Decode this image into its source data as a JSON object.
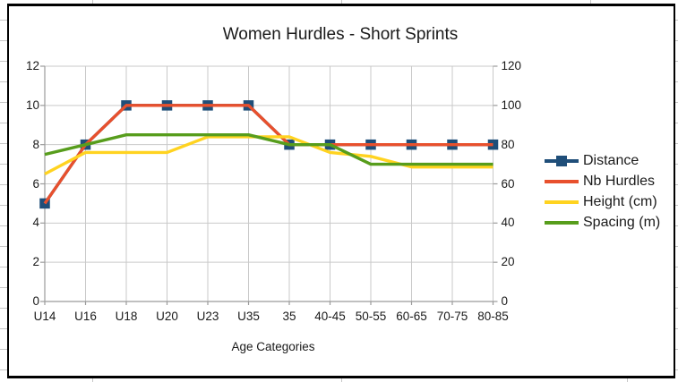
{
  "chart_data": {
    "type": "line",
    "title": "Women Hurdles - Short Sprints",
    "xlabel": "Age Categories",
    "categories": [
      "U14",
      "U16",
      "U18",
      "U20",
      "U23",
      "U35",
      "35",
      "40-45",
      "50-55",
      "60-65",
      "70-75",
      "80-85"
    ],
    "axes": {
      "left": {
        "ticks": [
          0,
          2,
          4,
          6,
          8,
          10,
          12
        ],
        "range": [
          0,
          12
        ]
      },
      "right": {
        "ticks": [
          0,
          20,
          40,
          60,
          80,
          100,
          120
        ],
        "range": [
          0,
          120
        ]
      }
    },
    "grid": true,
    "legend_position": "right",
    "series": [
      {
        "name": "Distance",
        "axis": "right",
        "color": "#1f4e79",
        "marker": "square",
        "values": [
          50,
          80,
          100,
          100,
          100,
          100,
          80,
          80,
          80,
          80,
          80,
          80
        ]
      },
      {
        "name": "Nb Hurdles",
        "axis": "left",
        "color": "#e8502d",
        "marker": "none",
        "values": [
          5,
          8,
          10,
          10,
          10,
          10,
          8,
          8,
          8,
          8,
          8,
          8
        ]
      },
      {
        "name": "Height (cm)",
        "axis": "right",
        "color": "#ffd320",
        "marker": "none",
        "values": [
          65,
          76,
          76,
          76,
          84,
          84,
          84,
          76,
          74,
          68.6,
          68.6,
          68.6
        ]
      },
      {
        "name": "Spacing (m)",
        "axis": "left",
        "color": "#579d1c",
        "marker": "none",
        "values": [
          7.5,
          8,
          8.5,
          8.5,
          8.5,
          8.5,
          8,
          8,
          7,
          7,
          7,
          7
        ]
      }
    ],
    "colors": {
      "grid": "#c9c9c9",
      "axis": "#9b9b9b",
      "text": "#1a1a1a"
    }
  }
}
